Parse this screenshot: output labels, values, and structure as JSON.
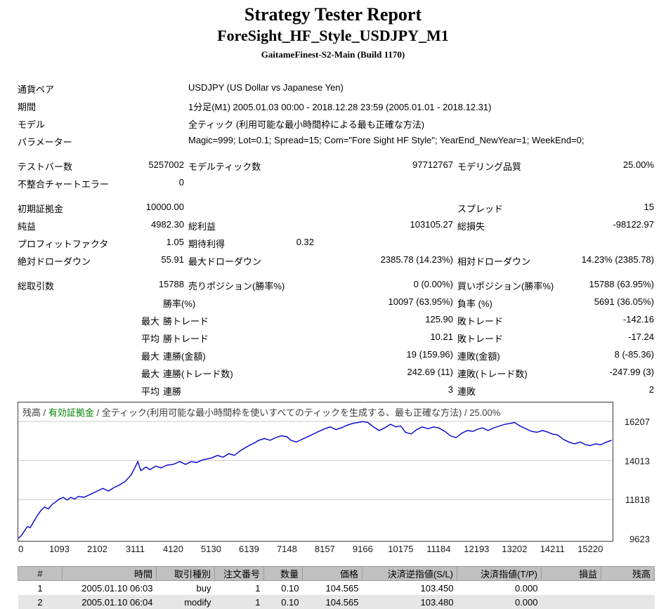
{
  "header": {
    "title": "Strategy Tester Report",
    "subtitle": "ForeSight_HF_Style_USDJPY_M1",
    "build": "GaitameFinest-S2-Main (Build 1170)"
  },
  "colors": {
    "balance_line": "#0000cc",
    "equity_text": "#008000",
    "grid": "#c9c9c9",
    "chart_border": "#3c3c3c",
    "table_header_bg": "#c0c0c0",
    "row_alt_bg": "#e6e6e6"
  },
  "summary": {
    "rows": [
      {
        "cells": [
          {
            "s": "l1",
            "t": "通貨ペア"
          },
          {
            "s": "full",
            "t": "USDJPY (US Dollar vs Japanese Yen)"
          }
        ]
      },
      {
        "cells": [
          {
            "s": "l1",
            "t": "期間"
          },
          {
            "s": "full",
            "t": "1分足(M1) 2005.01.03 00:00 - 2018.12.28 23:59 (2005.01.01 - 2018.12.31)"
          }
        ]
      },
      {
        "cells": [
          {
            "s": "l1",
            "t": "モデル"
          },
          {
            "s": "full",
            "t": "全ティック (利用可能な最小時間枠による最も正確な方法)"
          }
        ]
      },
      {
        "cells": [
          {
            "s": "l1",
            "t": "パラメーター"
          },
          {
            "s": "full",
            "t": "Magic=999; Lot=0.1; Spread=15; Com=\"Fore Sight HF Style\"; YearEnd_NewYear=1; WeekEnd=0;"
          }
        ]
      },
      {
        "gap": true,
        "cells": [
          {
            "s": "l1",
            "t": "テストバー数"
          },
          {
            "s": "v1",
            "t": "5257002"
          },
          {
            "s": "l2",
            "t": "モデルティック数"
          },
          {
            "s": "v2",
            "t": "97712767"
          },
          {
            "s": "l3",
            "t": "モデリング品質"
          },
          {
            "s": "v3",
            "t": "25.00%"
          }
        ]
      },
      {
        "cells": [
          {
            "s": "l1",
            "t": "不整合チャートエラー"
          },
          {
            "s": "v1",
            "t": "0"
          }
        ]
      },
      {
        "gap": true,
        "cells": [
          {
            "s": "l1",
            "t": "初期証拠金"
          },
          {
            "s": "v1",
            "t": "10000.00"
          },
          {
            "s": "l3",
            "t": "スプレッド"
          },
          {
            "s": "v3",
            "t": "15"
          }
        ]
      },
      {
        "cells": [
          {
            "s": "l1",
            "t": "純益"
          },
          {
            "s": "v1",
            "t": "4982.30"
          },
          {
            "s": "l2",
            "t": "総利益"
          },
          {
            "s": "v2",
            "t": "103105.27"
          },
          {
            "s": "l3",
            "t": "総損失"
          },
          {
            "s": "v3",
            "t": "-98122.97"
          }
        ]
      },
      {
        "cells": [
          {
            "s": "l1",
            "t": "プロフィットファクタ"
          },
          {
            "s": "v1",
            "t": "1.05"
          },
          {
            "s": "l2",
            "t": "期待利得"
          },
          {
            "s": "v2a",
            "t": "0.32"
          }
        ]
      },
      {
        "cells": [
          {
            "s": "l1",
            "t": "絶対ドローダウン"
          },
          {
            "s": "v1",
            "t": "55.91"
          },
          {
            "s": "l2",
            "t": "最大ドローダウン"
          },
          {
            "s": "v2",
            "t": "2385.78 (14.23%)"
          },
          {
            "s": "l3",
            "t": "相対ドローダウン"
          },
          {
            "s": "v3",
            "t": "14.23% (2385.78)"
          }
        ]
      },
      {
        "gap": true,
        "cells": [
          {
            "s": "l1",
            "t": "総取引数"
          },
          {
            "s": "v1",
            "t": "15788"
          },
          {
            "s": "l2",
            "t": "売りポジション(勝率%)"
          },
          {
            "s": "v2",
            "t": "0 (0.00%)"
          },
          {
            "s": "l3",
            "t": "買いポジション(勝率%)"
          },
          {
            "s": "v3",
            "t": "15788 (63.95%)"
          }
        ]
      },
      {
        "cells": [
          {
            "s": "sl",
            "t": "勝率(%)"
          },
          {
            "s": "v2",
            "t": "10097 (63.95%)"
          },
          {
            "s": "l3",
            "t": "負率 (%)"
          },
          {
            "s": "v3",
            "t": "5691 (36.05%)"
          }
        ]
      },
      {
        "cells": [
          {
            "s": "q",
            "t": "最大"
          },
          {
            "s": "sl",
            "t": "勝トレード"
          },
          {
            "s": "v2",
            "t": "125.90"
          },
          {
            "s": "l3",
            "t": "敗トレード"
          },
          {
            "s": "v3",
            "t": "-142.16"
          }
        ]
      },
      {
        "cells": [
          {
            "s": "q",
            "t": "平均"
          },
          {
            "s": "sl",
            "t": "勝トレード"
          },
          {
            "s": "v2",
            "t": "10.21"
          },
          {
            "s": "l3",
            "t": "敗トレード"
          },
          {
            "s": "v3",
            "t": "-17.24"
          }
        ]
      },
      {
        "cells": [
          {
            "s": "q",
            "t": "最大"
          },
          {
            "s": "sl",
            "t": "連勝(金額)"
          },
          {
            "s": "v2",
            "t": "19 (159.96)"
          },
          {
            "s": "l3",
            "t": "連敗(金額)"
          },
          {
            "s": "v3",
            "t": "8 (-85.36)"
          }
        ]
      },
      {
        "cells": [
          {
            "s": "q",
            "t": "最大"
          },
          {
            "s": "sl",
            "t": "連勝(トレード数)"
          },
          {
            "s": "v2",
            "t": "242.69 (11)"
          },
          {
            "s": "l3",
            "t": "連敗(トレード数)"
          },
          {
            "s": "v3",
            "t": "-247.99 (3)"
          }
        ]
      },
      {
        "cells": [
          {
            "s": "q",
            "t": "平均"
          },
          {
            "s": "sl",
            "t": "連勝"
          },
          {
            "s": "v2",
            "t": "3"
          },
          {
            "s": "l3",
            "t": "連敗"
          },
          {
            "s": "v3",
            "t": "2"
          }
        ]
      }
    ]
  },
  "chart_data": {
    "type": "line",
    "series_name": "残高",
    "legend_parts": [
      {
        "text": "残高",
        "color_key": "text"
      },
      {
        "text": " / ",
        "color_key": "text"
      },
      {
        "text": "有効証拠金",
        "color_key": "equity"
      },
      {
        "text": " / 全ティック(利用可能な最小時間枠を使いすべてのティックを生成する、最も正確な方法) / 25.00%",
        "color_key": "text"
      }
    ],
    "x_ticks": [
      0,
      1093,
      2102,
      3111,
      4120,
      5130,
      6139,
      7148,
      8157,
      9166,
      10175,
      11184,
      12193,
      13202,
      14211,
      15220
    ],
    "y_ticks": [
      16207,
      14013,
      11818,
      9623
    ],
    "x_max": 15813,
    "balance_curve": [
      [
        0,
        9650
      ],
      [
        80,
        9800
      ],
      [
        160,
        10050
      ],
      [
        240,
        10300
      ],
      [
        320,
        10250
      ],
      [
        400,
        10550
      ],
      [
        500,
        10900
      ],
      [
        600,
        11200
      ],
      [
        700,
        11400
      ],
      [
        800,
        11300
      ],
      [
        900,
        11550
      ],
      [
        1000,
        11700
      ],
      [
        1093,
        11850
      ],
      [
        1200,
        11950
      ],
      [
        1300,
        11800
      ],
      [
        1400,
        11950
      ],
      [
        1500,
        11850
      ],
      [
        1600,
        12000
      ],
      [
        1750,
        11950
      ],
      [
        1900,
        12100
      ],
      [
        2000,
        12200
      ],
      [
        2102,
        12300
      ],
      [
        2250,
        12450
      ],
      [
        2400,
        12300
      ],
      [
        2550,
        12500
      ],
      [
        2700,
        12650
      ],
      [
        2850,
        12850
      ],
      [
        3000,
        13200
      ],
      [
        3111,
        13650
      ],
      [
        3180,
        13950
      ],
      [
        3260,
        13450
      ],
      [
        3400,
        13650
      ],
      [
        3500,
        13500
      ],
      [
        3650,
        13700
      ],
      [
        3800,
        13600
      ],
      [
        3950,
        13750
      ],
      [
        4120,
        13800
      ],
      [
        4300,
        13950
      ],
      [
        4450,
        13800
      ],
      [
        4600,
        13950
      ],
      [
        4750,
        13900
      ],
      [
        4900,
        14050
      ],
      [
        5130,
        14150
      ],
      [
        5300,
        14300
      ],
      [
        5450,
        14200
      ],
      [
        5600,
        14400
      ],
      [
        5750,
        14300
      ],
      [
        5900,
        14550
      ],
      [
        6050,
        14750
      ],
      [
        6139,
        14850
      ],
      [
        6280,
        15000
      ],
      [
        6400,
        15150
      ],
      [
        6550,
        15250
      ],
      [
        6700,
        15150
      ],
      [
        6850,
        15300
      ],
      [
        7000,
        15400
      ],
      [
        7148,
        15350
      ],
      [
        7250,
        15150
      ],
      [
        7400,
        15050
      ],
      [
        7550,
        15200
      ],
      [
        7700,
        15350
      ],
      [
        7850,
        15500
      ],
      [
        8000,
        15650
      ],
      [
        8157,
        15800
      ],
      [
        8300,
        15900
      ],
      [
        8450,
        15750
      ],
      [
        8600,
        15850
      ],
      [
        8750,
        16000
      ],
      [
        8900,
        16100
      ],
      [
        9050,
        16150
      ],
      [
        9166,
        16200
      ],
      [
        9300,
        16150
      ],
      [
        9450,
        15900
      ],
      [
        9600,
        15700
      ],
      [
        9750,
        15850
      ],
      [
        9900,
        16050
      ],
      [
        10050,
        15900
      ],
      [
        10175,
        15950
      ],
      [
        10300,
        15600
      ],
      [
        10450,
        15500
      ],
      [
        10600,
        15750
      ],
      [
        10750,
        15900
      ],
      [
        10900,
        15800
      ],
      [
        11050,
        15900
      ],
      [
        11184,
        15850
      ],
      [
        11350,
        15650
      ],
      [
        11500,
        15400
      ],
      [
        11650,
        15300
      ],
      [
        11800,
        15550
      ],
      [
        11950,
        15700
      ],
      [
        12100,
        15650
      ],
      [
        12193,
        15750
      ],
      [
        12350,
        15850
      ],
      [
        12500,
        15700
      ],
      [
        12650,
        15850
      ],
      [
        12800,
        15950
      ],
      [
        12950,
        16050
      ],
      [
        13100,
        16100
      ],
      [
        13202,
        16150
      ],
      [
        13350,
        15950
      ],
      [
        13500,
        15800
      ],
      [
        13650,
        15650
      ],
      [
        13800,
        15600
      ],
      [
        13950,
        15700
      ],
      [
        14100,
        15600
      ],
      [
        14211,
        15500
      ],
      [
        14350,
        15450
      ],
      [
        14500,
        15200
      ],
      [
        14650,
        15050
      ],
      [
        14800,
        14950
      ],
      [
        14950,
        15050
      ],
      [
        15100,
        14900
      ],
      [
        15220,
        14850
      ],
      [
        15350,
        14950
      ],
      [
        15500,
        14900
      ],
      [
        15650,
        15050
      ],
      [
        15788,
        15150
      ]
    ]
  },
  "trades": {
    "columns": [
      "#",
      "時間",
      "取引種別",
      "注文番号",
      "数量",
      "価格",
      "決済逆指値(S/L)",
      "決済指値(T/P)",
      "損益",
      "残高"
    ],
    "rows": [
      [
        "1",
        "2005.01.10 06:03",
        "buy",
        "1",
        "0.10",
        "104.565",
        "103.450",
        "0.000",
        "",
        ""
      ],
      [
        "2",
        "2005.01.10 06:04",
        "modify",
        "1",
        "0.10",
        "104.565",
        "103.480",
        "0.000",
        "",
        ""
      ]
    ]
  }
}
